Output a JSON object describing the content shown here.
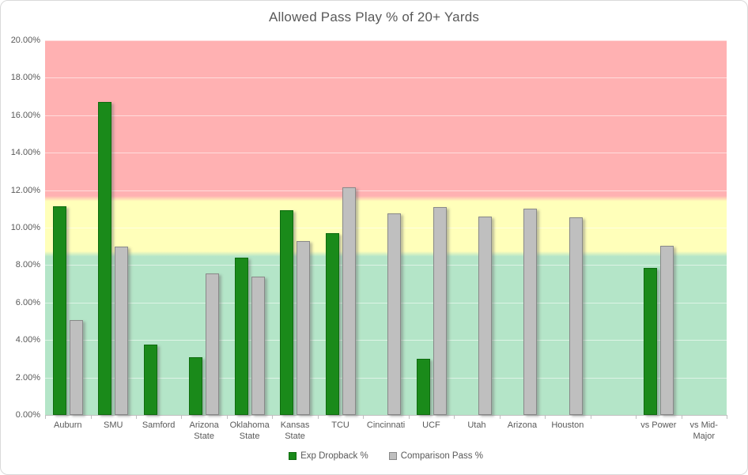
{
  "title": "Allowed Pass Play % of 20+ Yards",
  "chart_data": {
    "type": "bar",
    "title": "Allowed Pass Play % of 20+ Yards",
    "categories": [
      "Auburn",
      "SMU",
      "Samford",
      "Arizona State",
      "Oklahoma State",
      "Kansas State",
      "TCU",
      "Cincinnati",
      "UCF",
      "Utah",
      "Arizona",
      "Houston",
      "",
      "vs Power",
      "vs Mid-Major"
    ],
    "series": [
      {
        "name": "Exp Dropback %",
        "color": "#1a8a1a",
        "border_color": "#0e6b0e",
        "values": [
          11.15,
          16.7,
          3.75,
          3.1,
          8.4,
          10.95,
          9.7,
          null,
          3.0,
          null,
          null,
          null,
          null,
          7.85,
          null
        ]
      },
      {
        "name": "Comparison Pass %",
        "color": "#bfbfbf",
        "border_color": "#898989",
        "values": [
          5.05,
          9.0,
          null,
          7.55,
          7.4,
          9.3,
          12.15,
          10.75,
          11.1,
          10.6,
          11.0,
          10.55,
          null,
          9.05,
          null
        ]
      }
    ],
    "ylim": [
      0,
      20
    ],
    "ytick_step": 2,
    "ytick_labels_top_to_bottom": [
      "20.00%",
      "18.00%",
      "16.00%",
      "14.00%",
      "12.00%",
      "10.00%",
      "8.00%",
      "6.00%",
      "4.00%",
      "2.00%",
      "0.00%"
    ],
    "grid": true,
    "legend_position": "bottom",
    "bands": [
      {
        "name": "red-zone",
        "from": 11.55,
        "to": 20.0,
        "color": "#ffb1b2"
      },
      {
        "name": "yellow-zone",
        "from": 8.6,
        "to": 11.55,
        "color": "#ffffba"
      },
      {
        "name": "green-zone",
        "from": 0.0,
        "to": 8.6,
        "color": "#b4e5c8"
      }
    ],
    "gridline_color": "rgba(255,255,255,0.55)",
    "axis_color": "#bfbfbf",
    "text_color": "#595959"
  }
}
